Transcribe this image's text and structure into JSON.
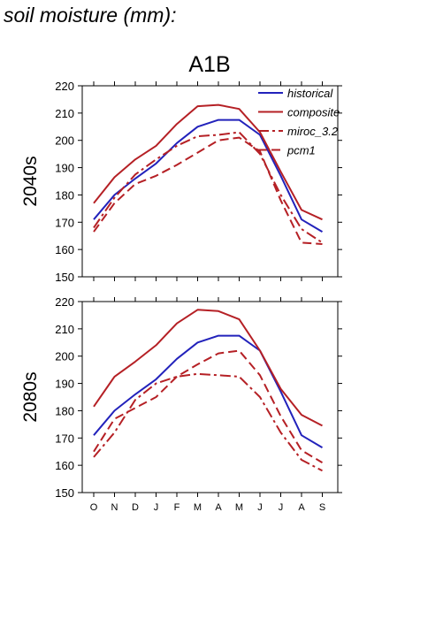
{
  "page": {
    "title": "soil moisture (mm):"
  },
  "chart_data": {
    "type": "line",
    "scenario": "A1B",
    "categories": [
      "O",
      "N",
      "D",
      "J",
      "F",
      "M",
      "A",
      "M",
      "J",
      "J",
      "A",
      "S"
    ],
    "ylim": [
      150,
      220
    ],
    "yticks": [
      150,
      160,
      170,
      180,
      190,
      200,
      210,
      220
    ],
    "grid": false,
    "legend_position": "top-right",
    "colors": {
      "historical": "#2222bb",
      "projection": "#b52025"
    },
    "legend": [
      {
        "name": "historical",
        "color": "#2222bb",
        "dash": "solid"
      },
      {
        "name": "composite",
        "color": "#b52025",
        "dash": "solid"
      },
      {
        "name": "miroc_3.2",
        "color": "#b52025",
        "dash": "dashdot"
      },
      {
        "name": "pcm1",
        "color": "#b52025",
        "dash": "dashed"
      }
    ],
    "panels": [
      {
        "label": "2040s",
        "series": [
          {
            "name": "historical",
            "values": [
              171,
              180,
              186,
              191.5,
              199,
              205,
              207.5,
              207.5,
              202,
              187,
              171,
              166.5
            ]
          },
          {
            "name": "composite",
            "values": [
              177,
              186.5,
              193,
              198,
              206,
              212.5,
              213,
              211.5,
              203,
              188.5,
              174.5,
              171
            ]
          },
          {
            "name": "miroc_3.2",
            "values": [
              168,
              179,
              187.5,
              193,
              198,
              201.5,
              202,
              203,
              195,
              180,
              167.5,
              162.5
            ]
          },
          {
            "name": "pcm1",
            "values": [
              166.5,
              177,
              184,
              187,
              191,
              195.5,
              200,
              201,
              196,
              178,
              162.5,
              162
            ]
          }
        ]
      },
      {
        "label": "2080s",
        "series": [
          {
            "name": "historical",
            "values": [
              171,
              180,
              186,
              191.5,
              199,
              205,
              207.5,
              207.5,
              202,
              187,
              171,
              166.5
            ]
          },
          {
            "name": "composite",
            "values": [
              181.5,
              192.5,
              198,
              204,
              212,
              217,
              216.5,
              213.5,
              202,
              188,
              178.5,
              174.5
            ]
          },
          {
            "name": "miroc_3.2",
            "values": [
              163,
              172,
              184,
              190,
              192.5,
              193.5,
              193,
              192.5,
              185,
              172,
              162,
              158
            ]
          },
          {
            "name": "pcm1",
            "values": [
              165,
              177,
              181,
              185,
              192.5,
              197,
              201,
              202,
              193,
              178,
              165.5,
              161
            ]
          }
        ]
      }
    ]
  }
}
